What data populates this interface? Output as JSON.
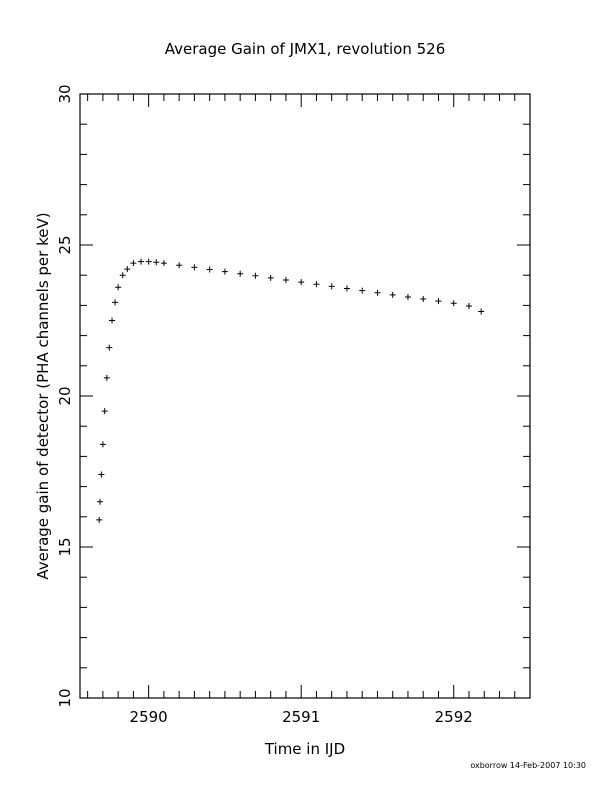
{
  "chart_data": {
    "type": "scatter",
    "title": "Average Gain of JMX1, revolution 526",
    "xlabel": "Time in IJD",
    "ylabel": "Average gain of detector (PHA channels per keV)",
    "xlim": [
      2589.55,
      2592.5
    ],
    "ylim": [
      10,
      30
    ],
    "x_ticks": [
      "2590",
      "2591",
      "2592"
    ],
    "y_ticks": [
      "10",
      "15",
      "20",
      "25",
      "30"
    ],
    "marker": "plus",
    "grid": false,
    "series": [
      {
        "x": [
          2589.676,
          2589.681,
          2589.69,
          2589.7,
          2589.712,
          2589.726,
          2589.742,
          2589.76,
          2589.78,
          2589.8,
          2589.83,
          2589.86,
          2589.9,
          2589.95,
          2590.0,
          2590.05,
          2590.1,
          2590.2,
          2590.3,
          2590.4,
          2590.5,
          2590.6,
          2590.7,
          2590.8,
          2590.9,
          2591.0,
          2591.1,
          2591.2,
          2591.3,
          2591.4,
          2591.5,
          2591.6,
          2591.7,
          2591.8,
          2591.9,
          2592.0,
          2592.1,
          2592.18
        ],
        "y": [
          15.9,
          16.5,
          17.4,
          18.4,
          19.5,
          20.6,
          21.6,
          22.5,
          23.1,
          23.6,
          24.0,
          24.2,
          24.4,
          24.45,
          24.45,
          24.43,
          24.4,
          24.33,
          24.26,
          24.19,
          24.12,
          24.05,
          23.98,
          23.91,
          23.84,
          23.77,
          23.7,
          23.63,
          23.56,
          23.49,
          23.42,
          23.35,
          23.28,
          23.21,
          23.14,
          23.07,
          22.98,
          22.8
        ]
      }
    ]
  },
  "footer": {
    "credit": "oxborrow 14-Feb-2007 10:30"
  }
}
